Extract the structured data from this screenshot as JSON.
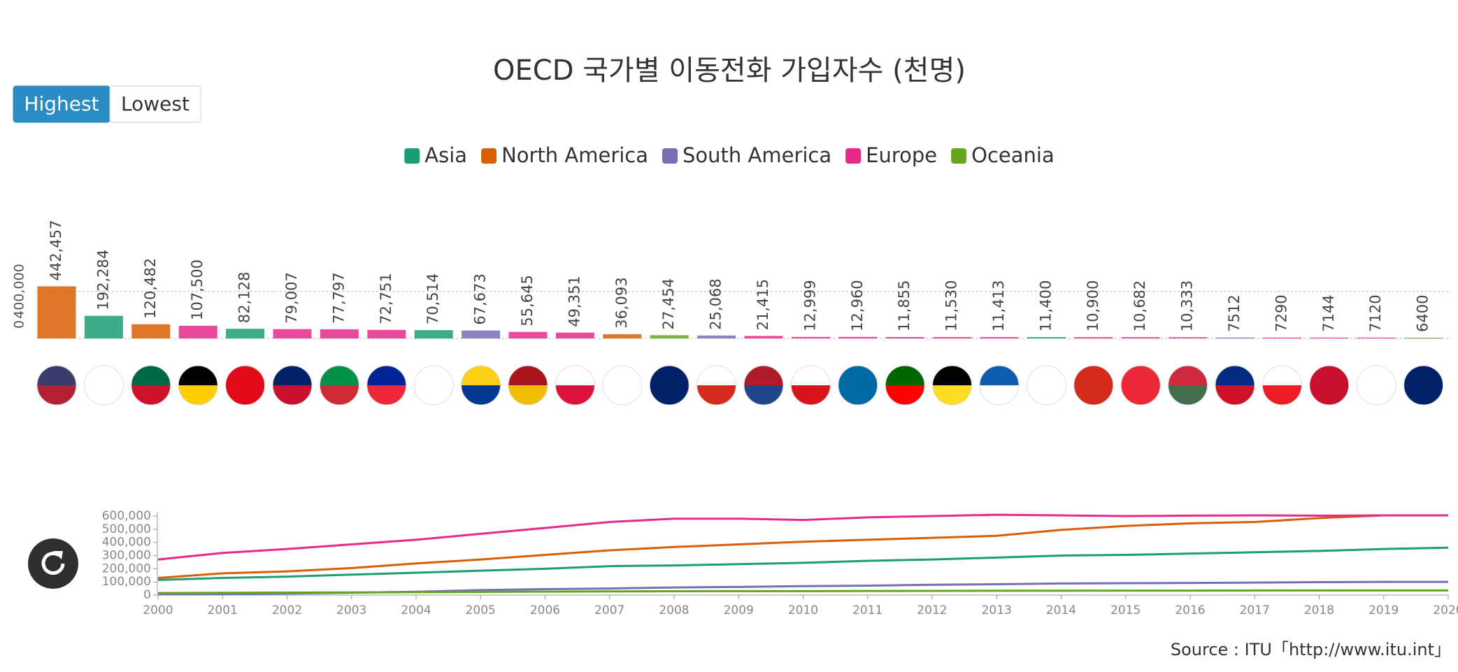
{
  "buttons": [
    "Highest",
    "Lowest"
  ],
  "source": "Source : ITU「http://www.itu.int」",
  "chart_data": [
    {
      "type": "bar",
      "title": "OECD 국가별 이동전화 가입자수 (천명)",
      "categories": [
        "미국",
        "일본",
        "멕시코",
        "독일",
        "터키",
        "영국",
        "이탈리아",
        "프랑스",
        "한국",
        "콜롬비아",
        "스페인",
        "폴란드",
        "캐나다",
        "호주",
        "칠레",
        "네덜란드",
        "체코",
        "스웨덴",
        "포르투갈",
        "벨기에",
        "그리스",
        "이스라엘",
        "스위스",
        "오스트리아",
        "헝가리",
        "코스타리카",
        "슬로바키아",
        "덴마크",
        "핀란드",
        "뉴질랜드"
      ],
      "values": [
        442457,
        192284,
        120482,
        107500,
        82128,
        79007,
        77797,
        72751,
        70514,
        67673,
        55645,
        49351,
        36093,
        27454,
        25068,
        21415,
        12999,
        12960,
        11855,
        11530,
        11413,
        11400,
        10900,
        10682,
        10333,
        7512,
        7290,
        7144,
        7120,
        6400
      ],
      "value_labels": [
        "442,457",
        "192,284",
        "120,482",
        "107,500",
        "82,128",
        "79,007",
        "77,797",
        "72,751",
        "70,514",
        "67,673",
        "55,645",
        "49,351",
        "36,093",
        "27,454",
        "25,068",
        "21,415",
        "12,999",
        "12,960",
        "11,855",
        "11,530",
        "11,413",
        "11,400",
        "10,900",
        "10,682",
        "10,333",
        "7512",
        "7290",
        "7144",
        "7120",
        "6400"
      ],
      "colors": [
        "#d95f02",
        "#1b9e77",
        "#d95f02",
        "#e7298a",
        "#1b9e77",
        "#e7298a",
        "#e7298a",
        "#e7298a",
        "#1b9e77",
        "#7570b3",
        "#e7298a",
        "#e7298a",
        "#d95f02",
        "#66a61e",
        "#7570b3",
        "#e7298a",
        "#e7298a",
        "#e7298a",
        "#e7298a",
        "#e7298a",
        "#e7298a",
        "#1b9e77",
        "#e7298a",
        "#e7298a",
        "#e7298a",
        "#7570b3",
        "#e7298a",
        "#e7298a",
        "#e7298a",
        "#66a61e"
      ],
      "ylim": [
        0,
        1300000
      ],
      "yticks": [
        0,
        {
          "value": 400000,
          "label": "400,000"
        }
      ],
      "grid": true
    },
    {
      "type": "line",
      "x": [
        2000,
        2001,
        2002,
        2003,
        2004,
        2005,
        2006,
        2007,
        2008,
        2009,
        2010,
        2011,
        2012,
        2013,
        2014,
        2015,
        2016,
        2017,
        2018,
        2019,
        2020
      ],
      "series": [
        {
          "name": "Asia",
          "color": "#1b9e77",
          "values": [
            115000,
            130000,
            140000,
            155000,
            170000,
            185000,
            200000,
            220000,
            225000,
            235000,
            245000,
            260000,
            270000,
            285000,
            300000,
            305000,
            315000,
            325000,
            335000,
            350000,
            360000
          ]
        },
        {
          "name": "North America",
          "color": "#d95f02",
          "values": [
            130000,
            165000,
            180000,
            205000,
            240000,
            270000,
            305000,
            340000,
            365000,
            385000,
            405000,
            420000,
            435000,
            450000,
            495000,
            525000,
            545000,
            555000,
            585000,
            605000,
            605000
          ]
        },
        {
          "name": "South America",
          "color": "#7570b3",
          "values": [
            5000,
            8000,
            12000,
            18000,
            25000,
            38000,
            45000,
            50000,
            58000,
            62000,
            68000,
            72000,
            78000,
            82000,
            88000,
            90000,
            92000,
            95000,
            98000,
            100000,
            100000
          ]
        },
        {
          "name": "Europe",
          "color": "#e7298a",
          "values": [
            270000,
            320000,
            350000,
            385000,
            420000,
            465000,
            510000,
            555000,
            580000,
            580000,
            570000,
            590000,
            600000,
            610000,
            605000,
            600000,
            603000,
            605000,
            603000,
            605000,
            605000
          ]
        },
        {
          "name": "Oceania",
          "color": "#66a61e",
          "values": [
            15000,
            17000,
            19000,
            20000,
            22000,
            24000,
            26000,
            28000,
            29000,
            30000,
            30000,
            31000,
            32000,
            33000,
            33000,
            34000,
            34000,
            35000,
            35000,
            35000,
            35000
          ]
        }
      ],
      "xlim": [
        2000,
        2020
      ],
      "ylim": [
        0,
        600000
      ],
      "xticks": [
        2000,
        2001,
        2002,
        2003,
        2004,
        2005,
        2006,
        2007,
        2008,
        2009,
        2010,
        2011,
        2012,
        2013,
        2014,
        2015,
        2016,
        2017,
        2018,
        2019,
        2020
      ],
      "yticks": [
        0,
        {
          "value": 100000,
          "label": "100,000"
        },
        {
          "value": 200000,
          "label": "200,000"
        },
        {
          "value": 300000,
          "label": "300,000"
        },
        {
          "value": 400000,
          "label": "400,000"
        },
        {
          "value": 500000,
          "label": "500,000"
        },
        {
          "value": 600000,
          "label": "600,000"
        }
      ]
    }
  ]
}
